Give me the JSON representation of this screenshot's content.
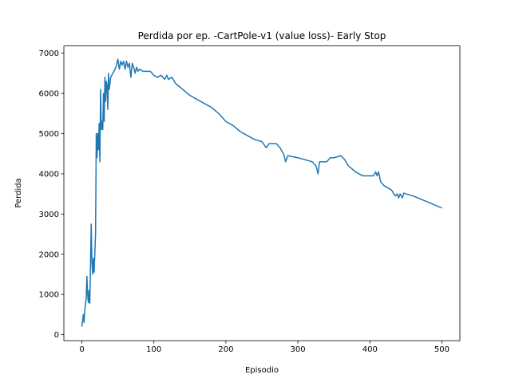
{
  "chart_data": {
    "type": "line",
    "title": "Perdida por ep. -CartPole-v1 (value loss)- Early Stop",
    "x_label": "Episodio",
    "y_label": "Perdida",
    "x": [
      0,
      2,
      3,
      4,
      6,
      7,
      8,
      9,
      10,
      11,
      13,
      14,
      15,
      16,
      17,
      19,
      20,
      21,
      22,
      23,
      24,
      25,
      26,
      27,
      28,
      29,
      30,
      31,
      32,
      33,
      34,
      35,
      36,
      37,
      38,
      40,
      43,
      46,
      48,
      50,
      52,
      54,
      56,
      58,
      60,
      62,
      64,
      66,
      68,
      70,
      72,
      74,
      76,
      78,
      80,
      85,
      90,
      95,
      100,
      105,
      110,
      115,
      118,
      120,
      125,
      130,
      140,
      150,
      160,
      170,
      180,
      190,
      200,
      210,
      220,
      230,
      240,
      250,
      256,
      260,
      270,
      275,
      280,
      283,
      286,
      300,
      310,
      320,
      325,
      328,
      330,
      340,
      345,
      350,
      360,
      365,
      370,
      380,
      390,
      400,
      405,
      408,
      410,
      412,
      415,
      420,
      430,
      435,
      438,
      440,
      442,
      445,
      447,
      460,
      480,
      500
    ],
    "series": [
      {
        "name": "value loss",
        "color": "#1f77b4",
        "values": [
          200,
          500,
          300,
          600,
          900,
          1450,
          1000,
          800,
          1100,
          780,
          2750,
          1800,
          1500,
          1900,
          1550,
          2500,
          5000,
          4400,
          5000,
          4600,
          5250,
          4300,
          6100,
          5100,
          5300,
          5100,
          6000,
          5300,
          6400,
          5800,
          6300,
          6200,
          5600,
          6500,
          6100,
          6400,
          6500,
          6600,
          6700,
          6850,
          6600,
          6800,
          6700,
          6800,
          6600,
          6800,
          6650,
          6750,
          6400,
          6750,
          6650,
          6500,
          6650,
          6550,
          6600,
          6550,
          6550,
          6550,
          6450,
          6400,
          6450,
          6350,
          6450,
          6350,
          6400,
          6250,
          6100,
          5950,
          5850,
          5750,
          5650,
          5500,
          5300,
          5200,
          5050,
          4950,
          4850,
          4800,
          4650,
          4750,
          4750,
          4650,
          4500,
          4300,
          4450,
          4400,
          4350,
          4300,
          4200,
          4000,
          4300,
          4300,
          4400,
          4400,
          4450,
          4350,
          4200,
          4050,
          3950,
          3950,
          3950,
          4050,
          3950,
          4050,
          3800,
          3700,
          3600,
          3450,
          3500,
          3400,
          3500,
          3400,
          3520,
          3450,
          3300,
          3150
        ]
      }
    ],
    "xlim": [
      -25,
      525
    ],
    "ylim": [
      -150,
      7180
    ],
    "xticks": [
      0,
      100,
      200,
      300,
      400,
      500
    ],
    "yticks": [
      0,
      1000,
      2000,
      3000,
      4000,
      5000,
      6000,
      7000
    ]
  }
}
